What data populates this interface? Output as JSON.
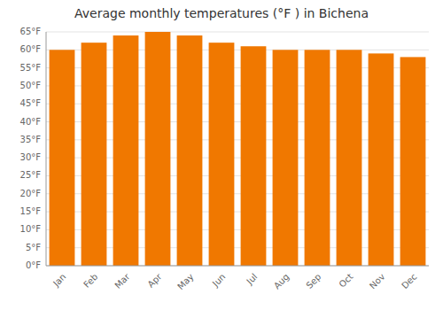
{
  "chart_data": {
    "type": "bar",
    "title": "Average monthly temperatures (°F ) in Bichena",
    "categories": [
      "Jan",
      "Feb",
      "Mar",
      "Apr",
      "May",
      "Jun",
      "Jul",
      "Aug",
      "Sep",
      "Oct",
      "Nov",
      "Dec"
    ],
    "values": [
      60,
      62,
      64,
      65,
      64,
      62,
      61,
      60,
      60,
      60,
      59,
      58
    ],
    "color": "#f07800",
    "ylim": [
      0,
      65
    ],
    "yticks": [
      {
        "value": 0,
        "label": "0°F"
      },
      {
        "value": 5,
        "label": "5°F"
      },
      {
        "value": 10,
        "label": "10°F"
      },
      {
        "value": 15,
        "label": "15°F"
      },
      {
        "value": 20,
        "label": "20°F"
      },
      {
        "value": 25,
        "label": "25°F"
      },
      {
        "value": 30,
        "label": "30°F"
      },
      {
        "value": 35,
        "label": "35°F"
      },
      {
        "value": 40,
        "label": "40°F"
      },
      {
        "value": 45,
        "label": "45°F"
      },
      {
        "value": 50,
        "label": "50°F"
      },
      {
        "value": 55,
        "label": "55°F"
      },
      {
        "value": 60,
        "label": "60°F"
      },
      {
        "value": 65,
        "label": "65°F"
      }
    ],
    "grid": true
  }
}
